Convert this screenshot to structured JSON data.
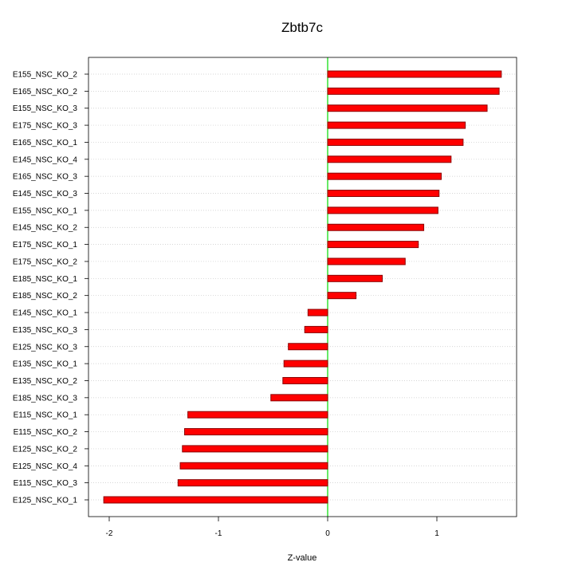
{
  "chart_data": {
    "type": "bar",
    "orientation": "horizontal",
    "title": "Zbtb7c",
    "xlabel": "Z-value",
    "ylabel": "",
    "xlim": [
      -2.1,
      1.75
    ],
    "x_ticks": [
      -2,
      -1,
      0,
      1
    ],
    "x_tick_labels": [
      "-2",
      "-1",
      "0",
      "1"
    ],
    "grid": "horizontal dotted lines at each category",
    "colors": {
      "bar": "#ff0000",
      "bar_edge": "#8b0000",
      "zero_line": "#00dd00"
    },
    "categories": [
      "E155_NSC_KO_2",
      "E165_NSC_KO_2",
      "E155_NSC_KO_3",
      "E175_NSC_KO_3",
      "E165_NSC_KO_1",
      "E145_NSC_KO_4",
      "E165_NSC_KO_3",
      "E145_NSC_KO_3",
      "E155_NSC_KO_1",
      "E145_NSC_KO_2",
      "E175_NSC_KO_1",
      "E175_NSC_KO_2",
      "E185_NSC_KO_1",
      "E185_NSC_KO_2",
      "E145_NSC_KO_1",
      "E135_NSC_KO_3",
      "E125_NSC_KO_3",
      "E135_NSC_KO_1",
      "E135_NSC_KO_2",
      "E185_NSC_KO_3",
      "E115_NSC_KO_1",
      "E115_NSC_KO_2",
      "E125_NSC_KO_2",
      "E125_NSC_KO_4",
      "E115_NSC_KO_3",
      "E125_NSC_KO_1"
    ],
    "values": [
      1.59,
      1.57,
      1.46,
      1.26,
      1.24,
      1.13,
      1.04,
      1.02,
      1.01,
      0.88,
      0.83,
      0.71,
      0.5,
      0.26,
      -0.18,
      -0.21,
      -0.36,
      -0.4,
      -0.41,
      -0.52,
      -1.28,
      -1.31,
      -1.33,
      -1.35,
      -1.37,
      -2.05
    ]
  }
}
